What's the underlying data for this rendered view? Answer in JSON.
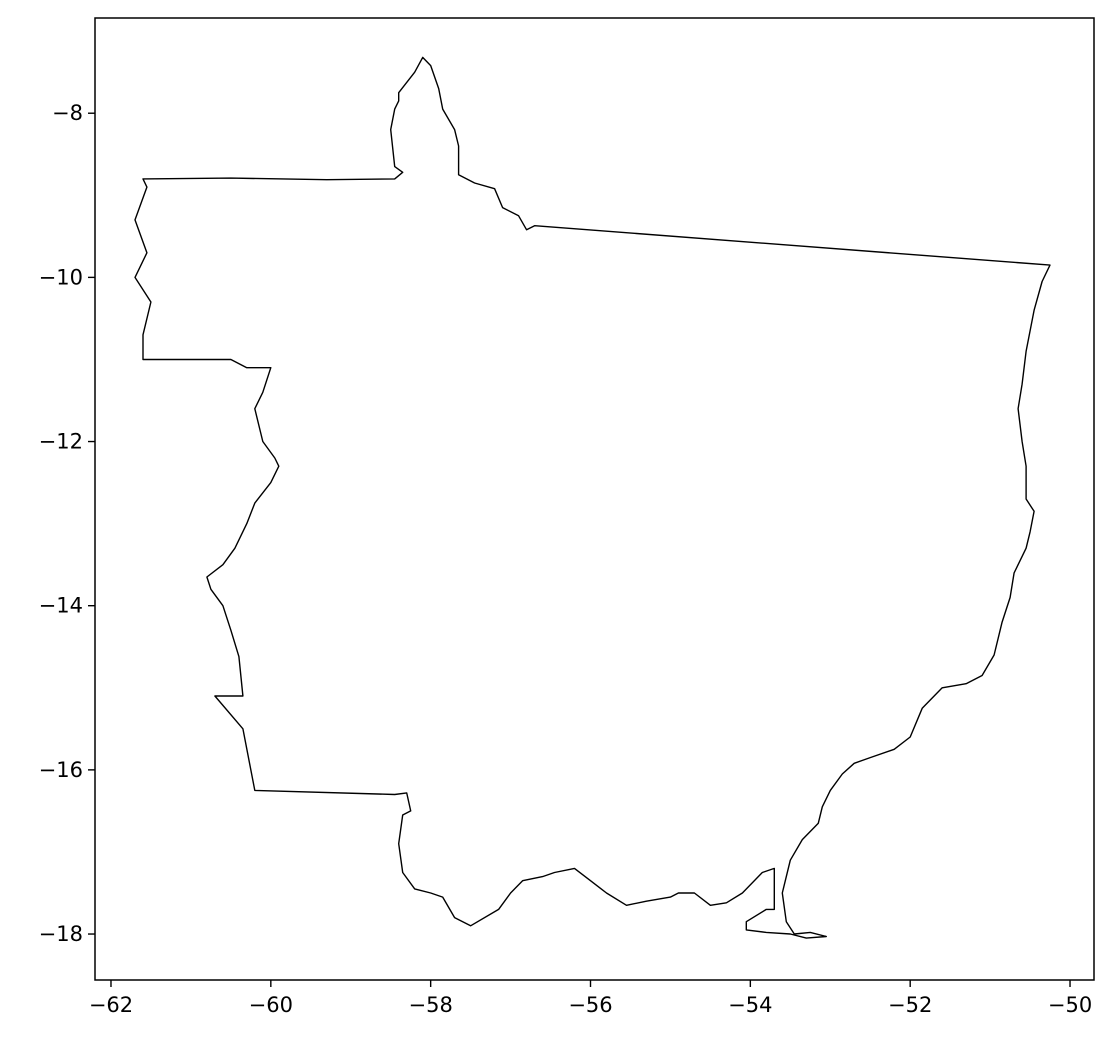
{
  "chart_data": {
    "type": "map",
    "xlim": [
      -62.2,
      -49.7
    ],
    "ylim": [
      -18.56,
      -6.84
    ],
    "x_ticks": [
      {
        "value": -62,
        "label": "−62"
      },
      {
        "value": -60,
        "label": "−60"
      },
      {
        "value": -58,
        "label": "−58"
      },
      {
        "value": -56,
        "label": "−56"
      },
      {
        "value": -54,
        "label": "−54"
      },
      {
        "value": -52,
        "label": "−52"
      },
      {
        "value": -50,
        "label": "−50"
      }
    ],
    "y_ticks": [
      {
        "value": -8,
        "label": "−8"
      },
      {
        "value": -10,
        "label": "−10"
      },
      {
        "value": -12,
        "label": "−12"
      },
      {
        "value": -14,
        "label": "−14"
      },
      {
        "value": -16,
        "label": "−16"
      },
      {
        "value": -18,
        "label": "−18"
      }
    ],
    "grid": false,
    "outline_color": "#000000",
    "boundary": [
      [
        -61.6,
        -8.8
      ],
      [
        -60.5,
        -8.79
      ],
      [
        -59.3,
        -8.81
      ],
      [
        -58.45,
        -8.8
      ],
      [
        -58.35,
        -8.72
      ],
      [
        -58.45,
        -8.65
      ],
      [
        -58.5,
        -8.2
      ],
      [
        -58.45,
        -7.95
      ],
      [
        -58.4,
        -7.85
      ],
      [
        -58.4,
        -7.75
      ],
      [
        -58.2,
        -7.5
      ],
      [
        -58.1,
        -7.32
      ],
      [
        -58.0,
        -7.42
      ],
      [
        -57.9,
        -7.7
      ],
      [
        -57.85,
        -7.95
      ],
      [
        -57.7,
        -8.2
      ],
      [
        -57.65,
        -8.4
      ],
      [
        -57.65,
        -8.75
      ],
      [
        -57.45,
        -8.85
      ],
      [
        -57.2,
        -8.92
      ],
      [
        -57.1,
        -9.15
      ],
      [
        -56.9,
        -9.25
      ],
      [
        -56.8,
        -9.42
      ],
      [
        -56.7,
        -9.37
      ],
      [
        -50.25,
        -9.85
      ],
      [
        -50.35,
        -10.05
      ],
      [
        -50.45,
        -10.4
      ],
      [
        -50.55,
        -10.9
      ],
      [
        -50.6,
        -11.3
      ],
      [
        -50.65,
        -11.6
      ],
      [
        -50.6,
        -12.0
      ],
      [
        -50.55,
        -12.3
      ],
      [
        -50.55,
        -12.7
      ],
      [
        -50.45,
        -12.85
      ],
      [
        -50.5,
        -13.1
      ],
      [
        -50.55,
        -13.3
      ],
      [
        -50.7,
        -13.6
      ],
      [
        -50.75,
        -13.9
      ],
      [
        -50.85,
        -14.2
      ],
      [
        -50.95,
        -14.6
      ],
      [
        -51.1,
        -14.85
      ],
      [
        -51.3,
        -14.95
      ],
      [
        -51.6,
        -15.0
      ],
      [
        -51.85,
        -15.25
      ],
      [
        -52.0,
        -15.6
      ],
      [
        -52.2,
        -15.75
      ],
      [
        -52.5,
        -15.85
      ],
      [
        -52.7,
        -15.92
      ],
      [
        -52.85,
        -16.05
      ],
      [
        -53.0,
        -16.25
      ],
      [
        -53.1,
        -16.45
      ],
      [
        -53.15,
        -16.65
      ],
      [
        -53.35,
        -16.85
      ],
      [
        -53.5,
        -17.1
      ],
      [
        -53.6,
        -17.5
      ],
      [
        -53.55,
        -17.85
      ],
      [
        -53.45,
        -18.0
      ],
      [
        -53.25,
        -17.98
      ],
      [
        -53.05,
        -18.03
      ],
      [
        -53.3,
        -18.05
      ],
      [
        -53.5,
        -18.0
      ],
      [
        -53.8,
        -17.98
      ],
      [
        -54.05,
        -17.95
      ],
      [
        -54.05,
        -17.85
      ],
      [
        -53.8,
        -17.7
      ],
      [
        -53.7,
        -17.7
      ],
      [
        -53.7,
        -17.2
      ],
      [
        -53.85,
        -17.25
      ],
      [
        -54.1,
        -17.5
      ],
      [
        -54.3,
        -17.62
      ],
      [
        -54.5,
        -17.65
      ],
      [
        -54.7,
        -17.5
      ],
      [
        -54.9,
        -17.5
      ],
      [
        -55.0,
        -17.55
      ],
      [
        -55.3,
        -17.6
      ],
      [
        -55.55,
        -17.65
      ],
      [
        -55.8,
        -17.5
      ],
      [
        -56.0,
        -17.35
      ],
      [
        -56.2,
        -17.2
      ],
      [
        -56.45,
        -17.25
      ],
      [
        -56.6,
        -17.3
      ],
      [
        -56.85,
        -17.35
      ],
      [
        -57.0,
        -17.5
      ],
      [
        -57.15,
        -17.7
      ],
      [
        -57.5,
        -17.9
      ],
      [
        -57.7,
        -17.8
      ],
      [
        -57.85,
        -17.55
      ],
      [
        -58.0,
        -17.5
      ],
      [
        -58.2,
        -17.45
      ],
      [
        -58.35,
        -17.25
      ],
      [
        -58.4,
        -16.9
      ],
      [
        -58.35,
        -16.55
      ],
      [
        -58.25,
        -16.5
      ],
      [
        -58.3,
        -16.28
      ],
      [
        -58.45,
        -16.3
      ],
      [
        -60.2,
        -16.25
      ],
      [
        -60.35,
        -15.5
      ],
      [
        -60.7,
        -15.1
      ],
      [
        -60.35,
        -15.1
      ],
      [
        -60.4,
        -14.62
      ],
      [
        -60.5,
        -14.3
      ],
      [
        -60.6,
        -14.0
      ],
      [
        -60.75,
        -13.8
      ],
      [
        -60.8,
        -13.65
      ],
      [
        -60.6,
        -13.5
      ],
      [
        -60.45,
        -13.3
      ],
      [
        -60.3,
        -13.0
      ],
      [
        -60.2,
        -12.75
      ],
      [
        -60.0,
        -12.5
      ],
      [
        -59.9,
        -12.3
      ],
      [
        -59.95,
        -12.2
      ],
      [
        -60.1,
        -12.0
      ],
      [
        -60.2,
        -11.6
      ],
      [
        -60.1,
        -11.4
      ],
      [
        -60.0,
        -11.1
      ],
      [
        -60.3,
        -11.1
      ],
      [
        -60.5,
        -11.0
      ],
      [
        -61.6,
        -11.0
      ],
      [
        -61.6,
        -10.7
      ],
      [
        -61.5,
        -10.3
      ],
      [
        -61.7,
        -10.0
      ],
      [
        -61.55,
        -9.7
      ],
      [
        -61.7,
        -9.3
      ],
      [
        -61.55,
        -8.9
      ],
      [
        -61.6,
        -8.8
      ]
    ]
  }
}
